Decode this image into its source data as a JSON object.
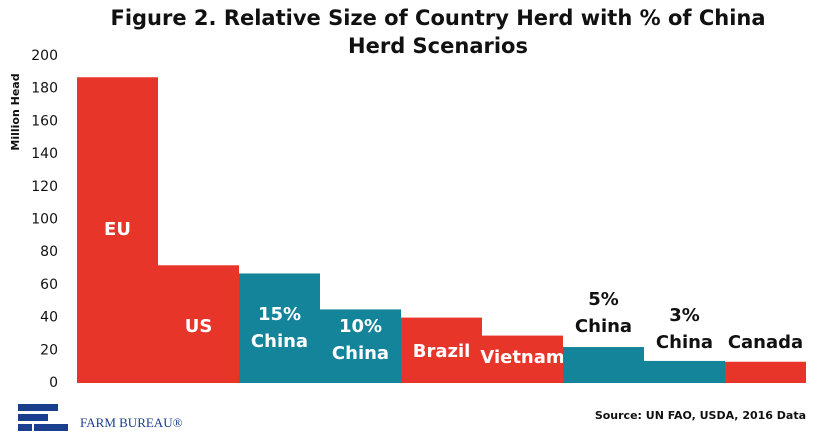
{
  "chart_data": {
    "type": "bar",
    "title": [
      "Figure 2. Relative Size of Country Herd with % of China",
      "Herd Scenarios"
    ],
    "y_label": "Million Head",
    "categories": [
      [
        "EU"
      ],
      [
        "US"
      ],
      [
        "15%",
        "China"
      ],
      [
        "10%",
        "China"
      ],
      [
        "Brazil"
      ],
      [
        "Vietnam"
      ],
      [
        "5%",
        "China"
      ],
      [
        "3%",
        "China"
      ],
      [
        "Canada"
      ]
    ],
    "values": [
      187,
      72,
      67,
      45,
      40,
      29,
      22,
      13.5,
      13
    ],
    "colors": [
      "#e8352a",
      "#e8352a",
      "#14849a",
      "#14849a",
      "#e8352a",
      "#e8352a",
      "#14849a",
      "#14849a",
      "#e8352a"
    ],
    "ylim": [
      0,
      200
    ],
    "yticks": [
      0,
      20,
      40,
      60,
      80,
      100,
      120,
      140,
      160,
      180,
      200
    ],
    "source": "Source: UN FAO, USDA, 2016 Data",
    "brand": "FARM BUREAU®"
  }
}
